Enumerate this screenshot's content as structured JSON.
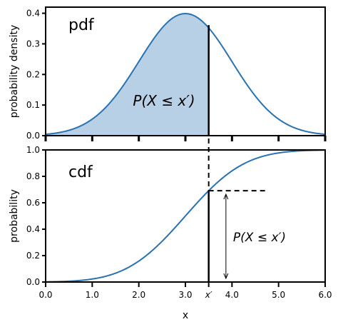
{
  "chart_data": [
    {
      "type": "area",
      "title": "pdf",
      "ylabel": "probability density",
      "xlim": [
        0,
        6
      ],
      "ylim": [
        0,
        0.42
      ],
      "x_ticks": [
        0,
        1,
        2,
        3,
        4,
        5,
        6
      ],
      "y_ticks": [
        "0.0",
        "0.1",
        "0.2",
        "0.3",
        "0.4"
      ],
      "distribution": {
        "mean": 3.0,
        "sd": 1.0
      },
      "x_prime": 3.5,
      "annotation": "P(X ≤ x′)",
      "line_color": "#2a72b0",
      "fill_color": "#b8d0e6"
    },
    {
      "type": "line",
      "title": "cdf",
      "ylabel": "probability",
      "xlabel": "x",
      "xlim": [
        0,
        6
      ],
      "ylim": [
        0,
        1.0
      ],
      "x_tick_labels": [
        "0.0",
        "1.0",
        "2.0",
        "3.0",
        "x′",
        "4.0",
        "5.0",
        "6.0"
      ],
      "y_ticks": [
        "0.0",
        "0.2",
        "0.4",
        "0.6",
        "0.8",
        "1.0"
      ],
      "x_prime": 3.5,
      "annotation": "P(X ≤ x′)",
      "line_color": "#2a72b0"
    }
  ]
}
